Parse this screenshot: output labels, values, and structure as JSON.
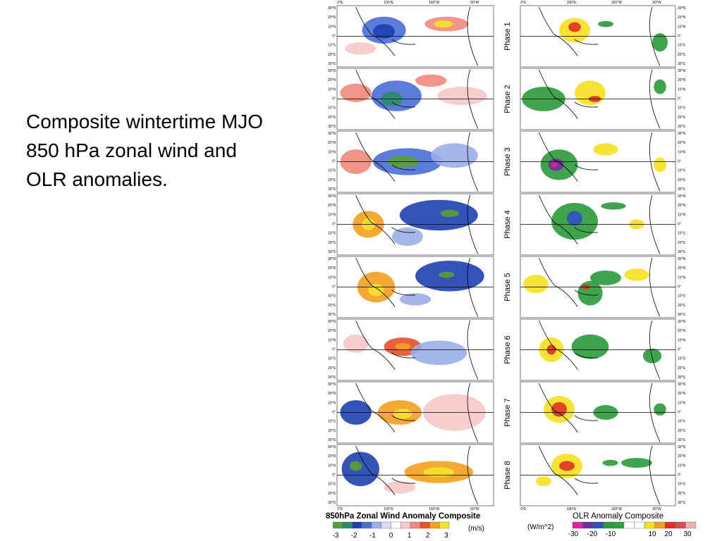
{
  "slide": {
    "caption": "Composite wintertime MJO 850 hPa zonal wind and OLR anomalies."
  },
  "figure": {
    "phases": [
      "Phase 1",
      "Phase 2",
      "Phase 3",
      "Phase 4",
      "Phase 5",
      "Phase 6",
      "Phase 7",
      "Phase 8"
    ],
    "lat_labels": [
      "30°N",
      "20°N",
      "10°N",
      "0°",
      "10°S",
      "20°S",
      "30°S"
    ],
    "lon_labels": [
      "0°E",
      "100°E",
      "160°W",
      "60°W"
    ],
    "wind": {
      "title": "850hPa Zonal Wind Anomaly Composite",
      "unit": "(m/s)",
      "scale": [
        "-3",
        "-2",
        "-1",
        "0",
        "1",
        "2",
        "3"
      ],
      "colors": [
        "#5a9e3a",
        "#2b8a6e",
        "#1f3fb0",
        "#4a6ed8",
        "#9aaee8",
        "#d8dcf4",
        "#ffffff",
        "#f6c8c8",
        "#ee8a7a",
        "#e9502a",
        "#f3a020",
        "#f5e22a"
      ]
    },
    "olr": {
      "title": "OLR Anomaly Composite",
      "unit": "(W/m^2)",
      "scale": [
        "-30",
        "-20",
        "-10",
        "10",
        "20",
        "30"
      ],
      "colors": [
        "#e020a0",
        "#7030a0",
        "#3050c0",
        "#2a9a3a",
        "#2fa040",
        "#ffffff",
        "#ffffff",
        "#f5e020",
        "#f0a020",
        "#e03020",
        "#d05050",
        "#e8b0b0"
      ]
    }
  }
}
